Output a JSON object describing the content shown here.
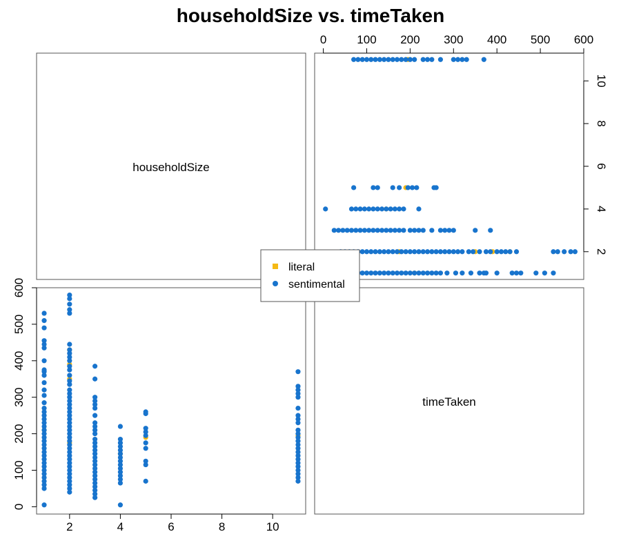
{
  "chart_data": {
    "type": "scatter",
    "title": "householdSize vs. timeTaken",
    "variables": [
      "householdSize",
      "timeTaken"
    ],
    "axes": {
      "householdSize": {
        "ticks": [
          2,
          4,
          6,
          8,
          10
        ],
        "range": [
          0.7,
          11.3
        ]
      },
      "timeTaken": {
        "ticks": [
          0,
          100,
          200,
          300,
          400,
          500,
          600
        ],
        "range": [
          -20,
          600
        ]
      }
    },
    "legend": {
      "position": "center",
      "entries": [
        {
          "label": "literal",
          "color": "#F5B914",
          "marker": "square"
        },
        {
          "label": "sentimental",
          "color": "#1874CD",
          "marker": "circle"
        }
      ]
    },
    "series": [
      {
        "name": "sentimental",
        "color": "#1874CD",
        "points": [
          [
            1,
            5
          ],
          [
            1,
            50
          ],
          [
            1,
            60
          ],
          [
            1,
            70
          ],
          [
            1,
            80
          ],
          [
            1,
            90
          ],
          [
            1,
            100
          ],
          [
            1,
            110
          ],
          [
            1,
            120
          ],
          [
            1,
            130
          ],
          [
            1,
            140
          ],
          [
            1,
            150
          ],
          [
            1,
            160
          ],
          [
            1,
            170
          ],
          [
            1,
            180
          ],
          [
            1,
            190
          ],
          [
            1,
            200
          ],
          [
            1,
            210
          ],
          [
            1,
            220
          ],
          [
            1,
            230
          ],
          [
            1,
            240
          ],
          [
            1,
            250
          ],
          [
            1,
            260
          ],
          [
            1,
            270
          ],
          [
            1,
            285
          ],
          [
            1,
            305
          ],
          [
            1,
            320
          ],
          [
            1,
            340
          ],
          [
            1,
            360
          ],
          [
            1,
            370
          ],
          [
            1,
            375
          ],
          [
            1,
            400
          ],
          [
            1,
            435
          ],
          [
            1,
            445
          ],
          [
            1,
            455
          ],
          [
            1,
            490
          ],
          [
            1,
            510
          ],
          [
            1,
            530
          ],
          [
            2,
            40
          ],
          [
            2,
            50
          ],
          [
            2,
            60
          ],
          [
            2,
            70
          ],
          [
            2,
            80
          ],
          [
            2,
            90
          ],
          [
            2,
            100
          ],
          [
            2,
            110
          ],
          [
            2,
            120
          ],
          [
            2,
            130
          ],
          [
            2,
            140
          ],
          [
            2,
            150
          ],
          [
            2,
            160
          ],
          [
            2,
            170
          ],
          [
            2,
            180
          ],
          [
            2,
            190
          ],
          [
            2,
            200
          ],
          [
            2,
            210
          ],
          [
            2,
            220
          ],
          [
            2,
            230
          ],
          [
            2,
            240
          ],
          [
            2,
            250
          ],
          [
            2,
            260
          ],
          [
            2,
            270
          ],
          [
            2,
            280
          ],
          [
            2,
            290
          ],
          [
            2,
            300
          ],
          [
            2,
            310
          ],
          [
            2,
            320
          ],
          [
            2,
            335
          ],
          [
            2,
            345
          ],
          [
            2,
            360
          ],
          [
            2,
            375
          ],
          [
            2,
            385
          ],
          [
            2,
            400
          ],
          [
            2,
            410
          ],
          [
            2,
            420
          ],
          [
            2,
            430
          ],
          [
            2,
            445
          ],
          [
            2,
            530
          ],
          [
            2,
            540
          ],
          [
            2,
            555
          ],
          [
            2,
            570
          ],
          [
            2,
            580
          ],
          [
            3,
            25
          ],
          [
            3,
            35
          ],
          [
            3,
            45
          ],
          [
            3,
            55
          ],
          [
            3,
            65
          ],
          [
            3,
            75
          ],
          [
            3,
            85
          ],
          [
            3,
            95
          ],
          [
            3,
            105
          ],
          [
            3,
            115
          ],
          [
            3,
            125
          ],
          [
            3,
            135
          ],
          [
            3,
            145
          ],
          [
            3,
            155
          ],
          [
            3,
            165
          ],
          [
            3,
            175
          ],
          [
            3,
            185
          ],
          [
            3,
            200
          ],
          [
            3,
            210
          ],
          [
            3,
            220
          ],
          [
            3,
            230
          ],
          [
            3,
            250
          ],
          [
            3,
            270
          ],
          [
            3,
            280
          ],
          [
            3,
            290
          ],
          [
            3,
            300
          ],
          [
            3,
            350
          ],
          [
            3,
            385
          ],
          [
            4,
            5
          ],
          [
            4,
            65
          ],
          [
            4,
            75
          ],
          [
            4,
            85
          ],
          [
            4,
            95
          ],
          [
            4,
            105
          ],
          [
            4,
            115
          ],
          [
            4,
            125
          ],
          [
            4,
            135
          ],
          [
            4,
            145
          ],
          [
            4,
            155
          ],
          [
            4,
            165
          ],
          [
            4,
            175
          ],
          [
            4,
            185
          ],
          [
            4,
            220
          ],
          [
            5,
            70
          ],
          [
            5,
            115
          ],
          [
            5,
            125
          ],
          [
            5,
            160
          ],
          [
            5,
            175
          ],
          [
            5,
            195
          ],
          [
            5,
            205
          ],
          [
            5,
            215
          ],
          [
            5,
            255
          ],
          [
            5,
            260
          ],
          [
            11,
            70
          ],
          [
            11,
            80
          ],
          [
            11,
            90
          ],
          [
            11,
            100
          ],
          [
            11,
            110
          ],
          [
            11,
            120
          ],
          [
            11,
            130
          ],
          [
            11,
            140
          ],
          [
            11,
            150
          ],
          [
            11,
            160
          ],
          [
            11,
            170
          ],
          [
            11,
            180
          ],
          [
            11,
            190
          ],
          [
            11,
            200
          ],
          [
            11,
            210
          ],
          [
            11,
            230
          ],
          [
            11,
            240
          ],
          [
            11,
            250
          ],
          [
            11,
            270
          ],
          [
            11,
            300
          ],
          [
            11,
            310
          ],
          [
            11,
            320
          ],
          [
            11,
            330
          ],
          [
            11,
            370
          ]
        ]
      },
      {
        "name": "literal",
        "color": "#F5B914",
        "points": [
          [
            1,
            210
          ],
          [
            2,
            175
          ],
          [
            2,
            350
          ],
          [
            2,
            390
          ],
          [
            2,
            430
          ],
          [
            4,
            145
          ],
          [
            5,
            190
          ],
          [
            11,
            195
          ]
        ]
      }
    ]
  }
}
